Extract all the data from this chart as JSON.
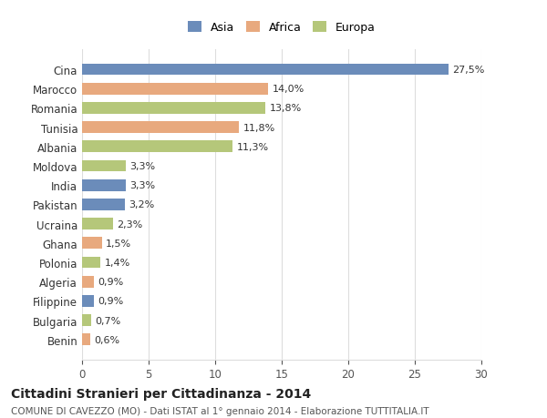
{
  "countries": [
    "Cina",
    "Marocco",
    "Romania",
    "Tunisia",
    "Albania",
    "Moldova",
    "India",
    "Pakistan",
    "Ucraina",
    "Ghana",
    "Polonia",
    "Algeria",
    "Filippine",
    "Bulgaria",
    "Benin"
  ],
  "values": [
    27.5,
    14.0,
    13.8,
    11.8,
    11.3,
    3.3,
    3.3,
    3.2,
    2.3,
    1.5,
    1.4,
    0.9,
    0.9,
    0.7,
    0.6
  ],
  "labels": [
    "27,5%",
    "14,0%",
    "13,8%",
    "11,8%",
    "11,3%",
    "3,3%",
    "3,3%",
    "3,2%",
    "2,3%",
    "1,5%",
    "1,4%",
    "0,9%",
    "0,9%",
    "0,7%",
    "0,6%"
  ],
  "categories": [
    "Asia",
    "Africa",
    "Europa",
    "Africa",
    "Europa",
    "Europa",
    "Asia",
    "Asia",
    "Europa",
    "Africa",
    "Europa",
    "Africa",
    "Asia",
    "Europa",
    "Africa"
  ],
  "colors": {
    "Asia": "#6b8cba",
    "Africa": "#e8a97e",
    "Europa": "#b5c77a"
  },
  "xlim": [
    0,
    30
  ],
  "xticks": [
    0,
    5,
    10,
    15,
    20,
    25,
    30
  ],
  "title": "Cittadini Stranieri per Cittadinanza - 2014",
  "subtitle": "COMUNE DI CAVEZZO (MO) - Dati ISTAT al 1° gennaio 2014 - Elaborazione TUTTITALIA.IT",
  "bg_color": "#ffffff",
  "grid_color": "#dddddd"
}
